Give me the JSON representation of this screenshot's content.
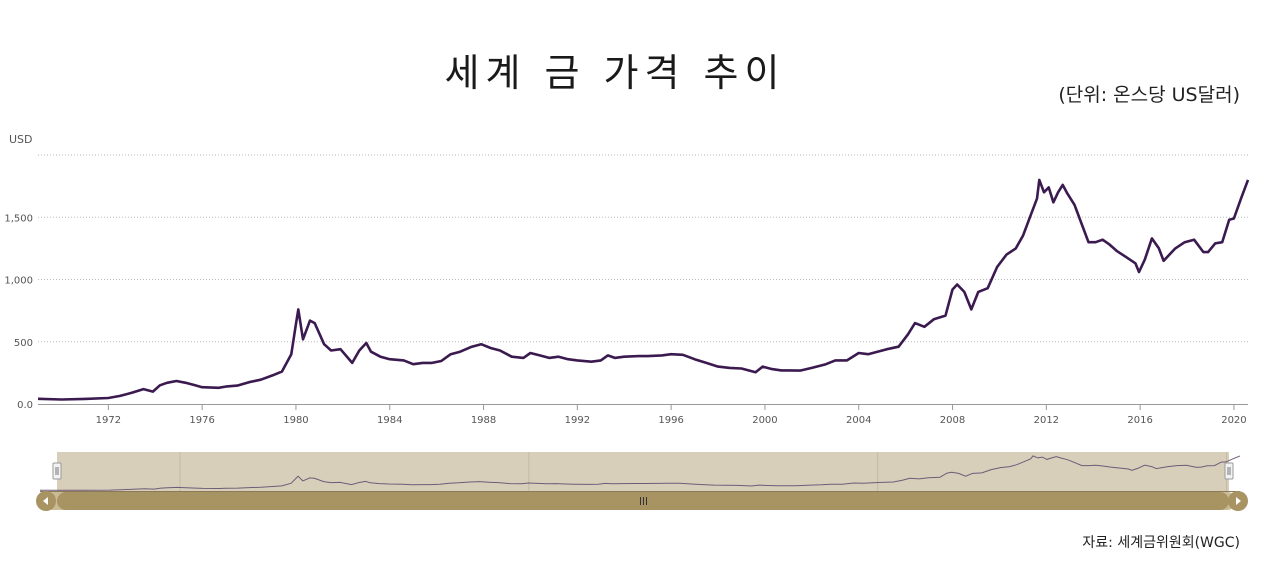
{
  "chart_data": {
    "type": "line",
    "title": "세계 금 가격 추이",
    "unit_note": "(단위: 온스당 US달러)",
    "ylabel": "USD",
    "source": "자료: 세계금위원회(WGC)",
    "ylim": [
      0,
      2000
    ],
    "xlim": [
      1969,
      2020.6
    ],
    "yticks": [
      0,
      500,
      1000,
      1500
    ],
    "ytick_labels": [
      "0.0",
      "500",
      "1,000",
      "1,500"
    ],
    "xticks": [
      1972,
      1976,
      1980,
      1984,
      1988,
      1992,
      1996,
      2000,
      2004,
      2008,
      2012,
      2016,
      2020
    ],
    "grid": true,
    "legend": "none",
    "line_color": "#3b1a4f",
    "series": [
      {
        "x": [
          1969.0,
          1970.0,
          1971.0,
          1972.0,
          1972.5,
          1973.0,
          1973.5,
          1973.9,
          1974.2,
          1974.5,
          1974.9,
          1975.3,
          1975.7,
          1976.0,
          1976.7,
          1977.0,
          1977.5,
          1978.0,
          1978.5,
          1979.0,
          1979.4,
          1979.8,
          1980.0,
          1980.1,
          1980.3,
          1980.6,
          1980.8,
          1981.2,
          1981.5,
          1981.9,
          1982.4,
          1982.7,
          1983.0,
          1983.2,
          1983.6,
          1984.0,
          1984.6,
          1985.0,
          1985.4,
          1985.8,
          1986.2,
          1986.6,
          1987.0,
          1987.5,
          1987.9,
          1988.3,
          1988.7,
          1989.2,
          1989.7,
          1990.0,
          1990.4,
          1990.8,
          1991.2,
          1991.6,
          1992.0,
          1992.6,
          1993.0,
          1993.3,
          1993.6,
          1994.0,
          1994.6,
          1995.0,
          1995.6,
          1996.0,
          1996.5,
          1997.0,
          1997.5,
          1998.0,
          1998.5,
          1999.0,
          1999.6,
          1999.9,
          2000.3,
          2000.7,
          2001.0,
          2001.5,
          2002.0,
          2002.6,
          2003.0,
          2003.5,
          2004.0,
          2004.4,
          2004.8,
          2005.2,
          2005.7,
          2006.1,
          2006.4,
          2006.8,
          2007.2,
          2007.7,
          2008.0,
          2008.2,
          2008.5,
          2008.8,
          2009.1,
          2009.5,
          2009.9,
          2010.3,
          2010.7,
          2011.0,
          2011.3,
          2011.6,
          2011.7,
          2011.9,
          2012.1,
          2012.3,
          2012.5,
          2012.7,
          2012.9,
          2013.2,
          2013.5,
          2013.8,
          2014.1,
          2014.4,
          2014.7,
          2015.0,
          2015.4,
          2015.8,
          2015.95,
          2016.2,
          2016.5,
          2016.8,
          2017.0,
          2017.5,
          2017.9,
          2018.3,
          2018.7,
          2018.9,
          2019.2,
          2019.5,
          2019.8,
          2020.0,
          2020.3,
          2020.6
        ],
        "y": [
          42,
          36,
          41,
          48,
          65,
          90,
          120,
          100,
          150,
          170,
          185,
          170,
          150,
          135,
          130,
          140,
          148,
          175,
          195,
          230,
          260,
          400,
          640,
          760,
          520,
          670,
          650,
          480,
          430,
          440,
          330,
          430,
          490,
          420,
          380,
          360,
          350,
          320,
          330,
          330,
          345,
          400,
          420,
          460,
          480,
          450,
          430,
          380,
          370,
          410,
          390,
          370,
          380,
          360,
          350,
          340,
          350,
          390,
          370,
          380,
          385,
          385,
          390,
          400,
          395,
          360,
          330,
          300,
          290,
          285,
          255,
          300,
          280,
          270,
          270,
          268,
          290,
          320,
          350,
          350,
          410,
          400,
          420,
          440,
          460,
          560,
          650,
          620,
          680,
          710,
          920,
          960,
          900,
          760,
          900,
          930,
          1100,
          1200,
          1250,
          1350,
          1500,
          1650,
          1800,
          1700,
          1740,
          1620,
          1700,
          1760,
          1690,
          1600,
          1450,
          1300,
          1300,
          1320,
          1280,
          1230,
          1180,
          1130,
          1060,
          1160,
          1330,
          1250,
          1150,
          1250,
          1300,
          1320,
          1220,
          1220,
          1290,
          1300,
          1480,
          1490,
          1650,
          1800
        ]
      }
    ]
  }
}
